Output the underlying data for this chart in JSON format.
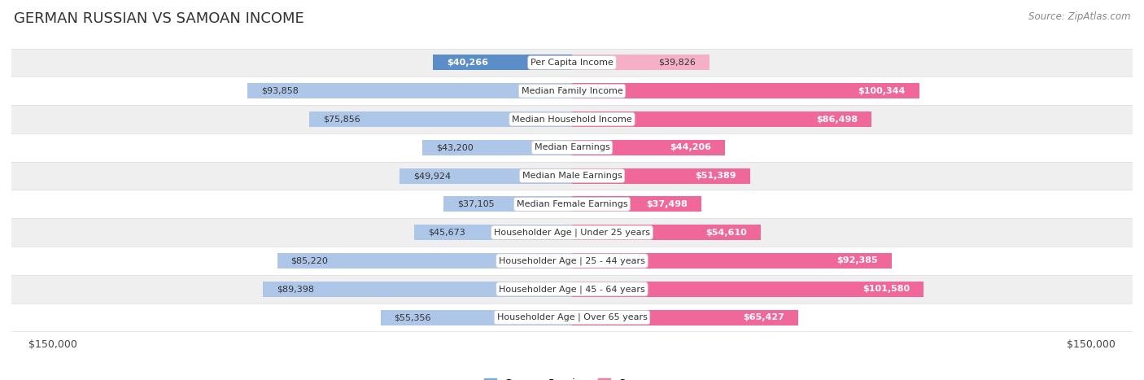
{
  "title": "GERMAN RUSSIAN VS SAMOAN INCOME",
  "source": "Source: ZipAtlas.com",
  "categories": [
    "Per Capita Income",
    "Median Family Income",
    "Median Household Income",
    "Median Earnings",
    "Median Male Earnings",
    "Median Female Earnings",
    "Householder Age | Under 25 years",
    "Householder Age | 25 - 44 years",
    "Householder Age | 45 - 64 years",
    "Householder Age | Over 65 years"
  ],
  "german_russian": [
    40266,
    93858,
    75856,
    43200,
    49924,
    37105,
    45673,
    85220,
    89398,
    55356
  ],
  "samoan": [
    39826,
    100344,
    86498,
    44206,
    51389,
    37498,
    54610,
    92385,
    101580,
    65427
  ],
  "max_val": 150000,
  "blue_light": "#aec6e8",
  "blue_dark": "#5b8ec9",
  "pink_light": "#f5b0c8",
  "pink_dark": "#f0689a",
  "bg_row_odd": "#efefef",
  "bg_row_even": "#ffffff",
  "legend_blue": "#7aadd4",
  "legend_pink": "#f07ca0",
  "title_fontsize": 13,
  "source_fontsize": 8.5,
  "label_fontsize": 8,
  "category_fontsize": 8
}
